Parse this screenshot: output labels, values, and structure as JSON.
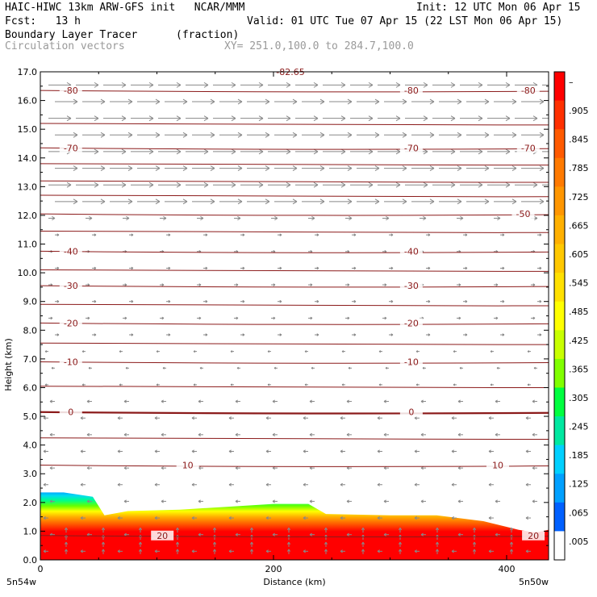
{
  "header": {
    "model_title": "HAIC-HIWC 13km ARW-GFS init   NCAR/MMM",
    "init": "Init: 12 UTC Mon 06 Apr 15",
    "fcst": "Fcst:   13 h",
    "valid": "Valid: 01 UTC Tue 07 Apr 15 (22 LST Mon 06 Apr 15)",
    "field": "Boundary Layer Tracer",
    "units": "(fraction)",
    "vectors": "Circulation vectors",
    "xy": "XY= 251.0,100.0 to 284.7,100.0"
  },
  "colors": {
    "contour": "#8b1a1a",
    "vector": "#888888",
    "frame": "#000000"
  },
  "chart_data": {
    "type": "heatmap",
    "xlabel": "Distance (km)",
    "ylabel": "Height (km)",
    "xlim": [
      0,
      436
    ],
    "ylim": [
      0,
      17
    ],
    "x_ticks": [
      0,
      200,
      400
    ],
    "y_ticks": [
      "0.0",
      "1.0",
      "2.0",
      "3.0",
      "4.0",
      "5.0",
      "6.0",
      "7.0",
      "8.0",
      "9.0",
      "10.0",
      "11.0",
      "12.0",
      "13.0",
      "14.0",
      "15.0",
      "16.0",
      "17.0"
    ],
    "x_endpoints": {
      "left": "5n54w",
      "right": "5n50w"
    },
    "colorbar": {
      "labels": [
        "–",
        ".905",
        ".845",
        ".785",
        ".725",
        ".665",
        ".605",
        ".545",
        ".485",
        ".425",
        ".365",
        ".305",
        ".245",
        ".185",
        ".125",
        ".065",
        ".005"
      ],
      "colors": [
        "#ff0000",
        "#ff3000",
        "#ff5a00",
        "#ff7a00",
        "#ff9600",
        "#ffb000",
        "#ffc800",
        "#ffe000",
        "#ffff00",
        "#c8ff00",
        "#80ff00",
        "#00ff40",
        "#00e8a0",
        "#00d0ff",
        "#00a0ff",
        "#0060ff",
        "#ffffff"
      ]
    },
    "tracer_top": [
      [
        0,
        2.35
      ],
      [
        20,
        2.35
      ],
      [
        45,
        2.2
      ],
      [
        55,
        1.55
      ],
      [
        75,
        1.7
      ],
      [
        120,
        1.75
      ],
      [
        160,
        1.85
      ],
      [
        200,
        1.95
      ],
      [
        230,
        1.95
      ],
      [
        245,
        1.6
      ],
      [
        300,
        1.55
      ],
      [
        340,
        1.55
      ],
      [
        380,
        1.35
      ],
      [
        410,
        1.05
      ],
      [
        425,
        0.95
      ],
      [
        436,
        1.05
      ]
    ],
    "temperature_contours": [
      {
        "label": "-80",
        "height": 16.35
      },
      {
        "label": "-70",
        "height": 14.35
      },
      {
        "label": "-50",
        "height": 12.05
      },
      {
        "label": "-40",
        "height": 10.75
      },
      {
        "label": "-30",
        "height": 9.55
      },
      {
        "label": "-20",
        "height": 8.25
      },
      {
        "label": "-10",
        "height": 6.9
      },
      {
        "label": "0",
        "height": 5.15
      },
      {
        "label": "10",
        "height": 3.3
      },
      {
        "label": "20",
        "height": 0.85
      }
    ],
    "top_partial_label": "-82.65",
    "unlabeled_contours": [
      15.2,
      13.8,
      13.2,
      12.7,
      11.45,
      10.1,
      8.9,
      7.55,
      6.05,
      4.25
    ]
  }
}
